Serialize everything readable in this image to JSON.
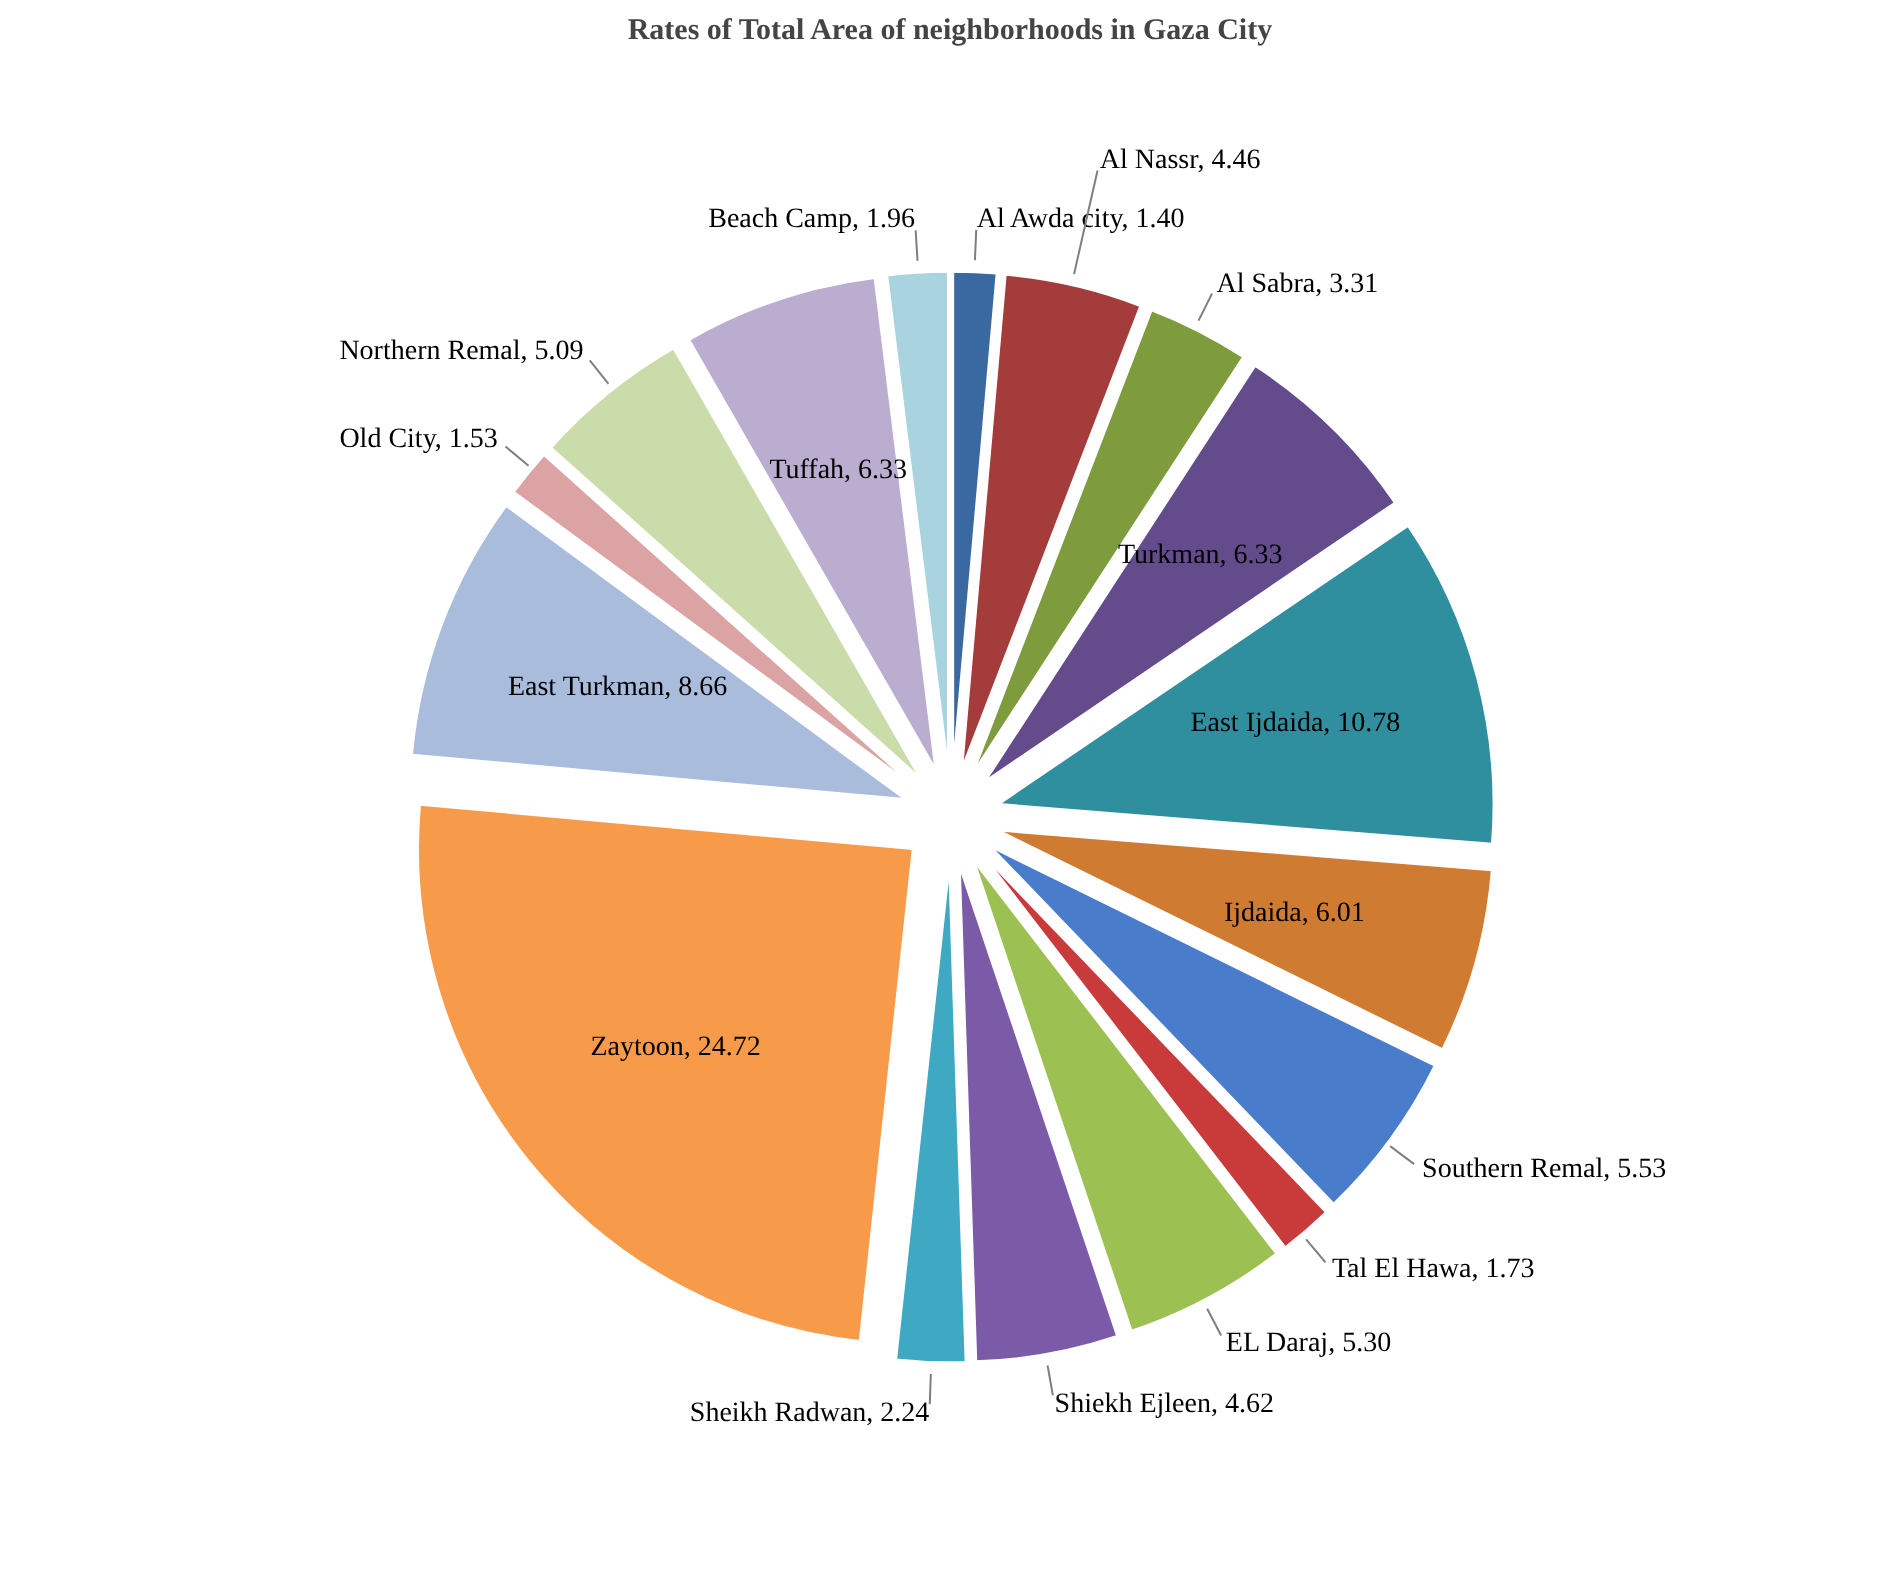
{
  "chart_data": {
    "type": "pie",
    "title": "Rates of Total Area of neighborhoods in Gaza City",
    "categories": [
      "Al Awda city",
      "Al Nassr",
      "Al Sabra",
      "Turkman",
      "East Ijdaida",
      "Ijdaida",
      "Southern Remal",
      "Tal El Hawa",
      "EL Daraj",
      "Shiekh Ejleen",
      "Sheikh Radwan",
      "Zaytoon",
      "East Turkman",
      "Old City",
      "Northern Remal",
      "Tuffah",
      "Beach Camp"
    ],
    "values": [
      1.4,
      4.46,
      3.31,
      6.33,
      10.78,
      6.01,
      5.53,
      1.73,
      5.3,
      4.62,
      2.24,
      24.72,
      8.66,
      1.53,
      5.09,
      6.33,
      1.96
    ],
    "value_labels": [
      "1.40",
      "4.46",
      "3.31",
      "6.33",
      "10.78",
      "6.01",
      "5.53",
      "1.73",
      "5.30",
      "4.62",
      "2.24",
      "24.72",
      "8.66",
      "1.53",
      "5.09",
      "6.33",
      "1.96"
    ],
    "colors": [
      "#3a68a0",
      "#a33c3a",
      "#7e9c3e",
      "#634b8c",
      "#2f8f9f",
      "#d07b32",
      "#4a7ccc",
      "#c93b3b",
      "#9cc152",
      "#7b5ba8",
      "#3fa8c2",
      "#f79b4a",
      "#a9bcdc",
      "#dba3a3",
      "#cbdcab",
      "#bbadd0",
      "#a9d3df"
    ]
  }
}
